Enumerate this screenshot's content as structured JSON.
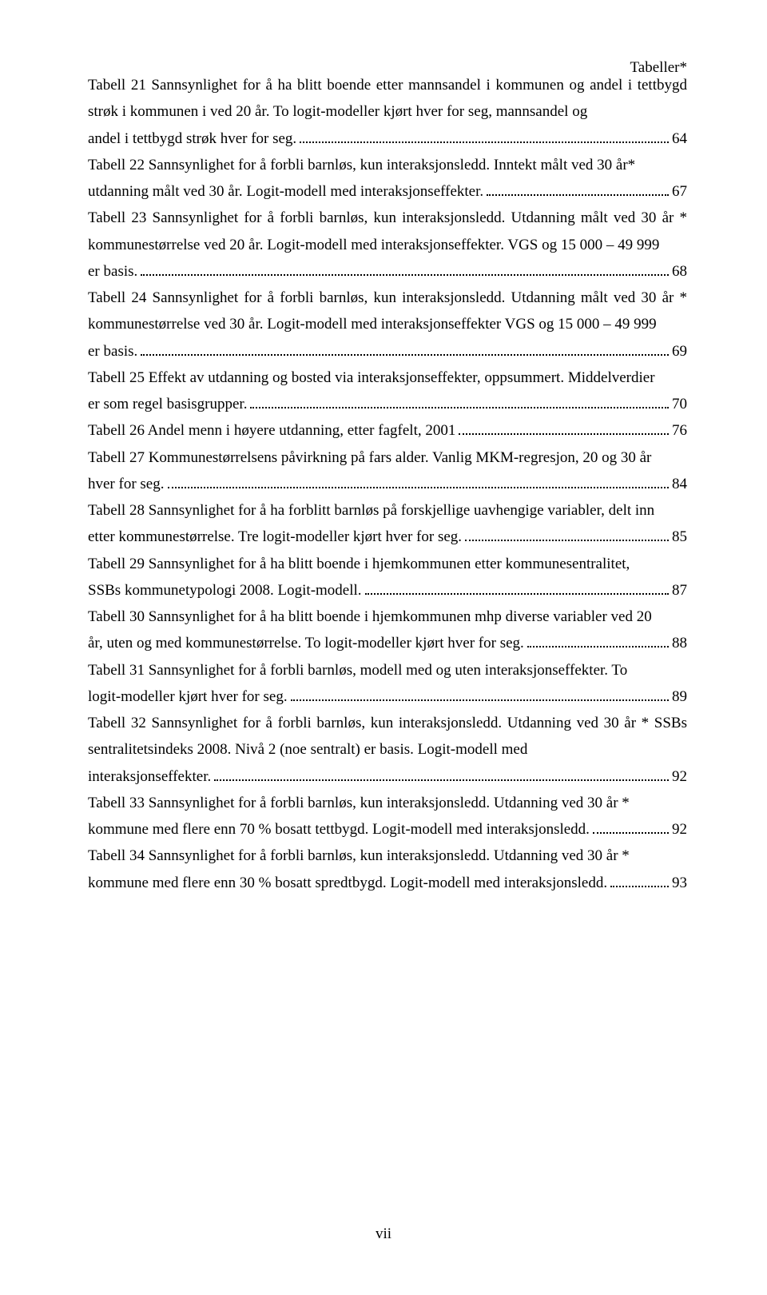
{
  "header": {
    "right": "Tabeller*"
  },
  "footer": {
    "page_num": "vii"
  },
  "entries": [
    {
      "pre": "Tabell 21 Sannsynlighet for å ha blitt boende etter mannsandel i kommunen og andel i tettbygd strøk i kommunen i ved 20 år. To logit-modeller kjørt hver for seg, mannsandel og",
      "last": "andel i tettbygd strøk hver for seg.",
      "page": "64"
    },
    {
      "pre": "Tabell 22 Sannsynlighet for å forbli barnløs, kun interaksjonsledd. Inntekt målt ved 30 år*",
      "last": "utdanning målt ved 30 år. Logit-modell med interaksjonseffekter.",
      "page": "67"
    },
    {
      "pre": "Tabell 23 Sannsynlighet for å forbli barnløs, kun interaksjonsledd. Utdanning målt ved 30 år * kommunestørrelse ved 20 år. Logit-modell med interaksjonseffekter. VGS og 15 000 – 49 999",
      "last": "er basis.",
      "page": "68"
    },
    {
      "pre": "Tabell 24 Sannsynlighet for å forbli barnløs, kun interaksjonsledd. Utdanning målt ved 30 år * kommunestørrelse ved 30 år. Logit-modell med interaksjonseffekter  VGS og 15 000 – 49 999",
      "last": "er basis.",
      "page": "69"
    },
    {
      "pre": "Tabell 25 Effekt av utdanning og bosted via interaksjonseffekter, oppsummert. Middelverdier",
      "last": "er som regel basisgrupper.",
      "page": "70"
    },
    {
      "pre": "",
      "last": "Tabell 26 Andel menn i høyere utdanning, etter fagfelt, 2001",
      "page": "76"
    },
    {
      "pre": "Tabell 27 Kommunestørrelsens påvirkning på fars alder. Vanlig MKM-regresjon, 20 og 30 år",
      "last": "hver for seg.",
      "page": "84"
    },
    {
      "pre": "Tabell 28 Sannsynlighet for å ha forblitt barnløs på forskjellige uavhengige variabler, delt inn",
      "last": "etter kommunestørrelse. Tre logit-modeller kjørt hver for seg.",
      "page": "85"
    },
    {
      "pre": "Tabell 29 Sannsynlighet for å ha blitt boende i hjemkommunen etter kommunesentralitet,",
      "last": "SSBs kommunetypologi 2008. Logit-modell.",
      "page": "87"
    },
    {
      "pre": "Tabell 30 Sannsynlighet for å ha blitt boende i hjemkommunen mhp diverse variabler ved 20",
      "last": "år, uten og med kommunestørrelse. To logit-modeller kjørt hver for seg.",
      "page": "88"
    },
    {
      "pre": "Tabell 31 Sannsynlighet for å forbli barnløs, modell med og uten interaksjonseffekter. To",
      "last": "logit-modeller kjørt hver for seg.",
      "page": "89"
    },
    {
      "pre": "Tabell 32 Sannsynlighet for å forbli barnløs, kun interaksjonsledd. Utdanning ved 30 år * SSBs sentralitetsindeks 2008. Nivå 2 (noe sentralt) er basis. Logit-modell med",
      "last": "interaksjonseffekter.",
      "page": "92"
    },
    {
      "pre": "Tabell 33 Sannsynlighet for å forbli barnløs, kun interaksjonsledd. Utdanning ved 30 år *",
      "last": "kommune med flere enn 70 % bosatt tettbygd. Logit-modell med interaksjonsledd.",
      "page": "92"
    },
    {
      "pre": "Tabell 34 Sannsynlighet for å forbli barnløs, kun interaksjonsledd. Utdanning ved 30 år *",
      "last": "kommune med flere enn 30 % bosatt spredtbygd. Logit-modell med interaksjonsledd.",
      "page": "93"
    }
  ]
}
